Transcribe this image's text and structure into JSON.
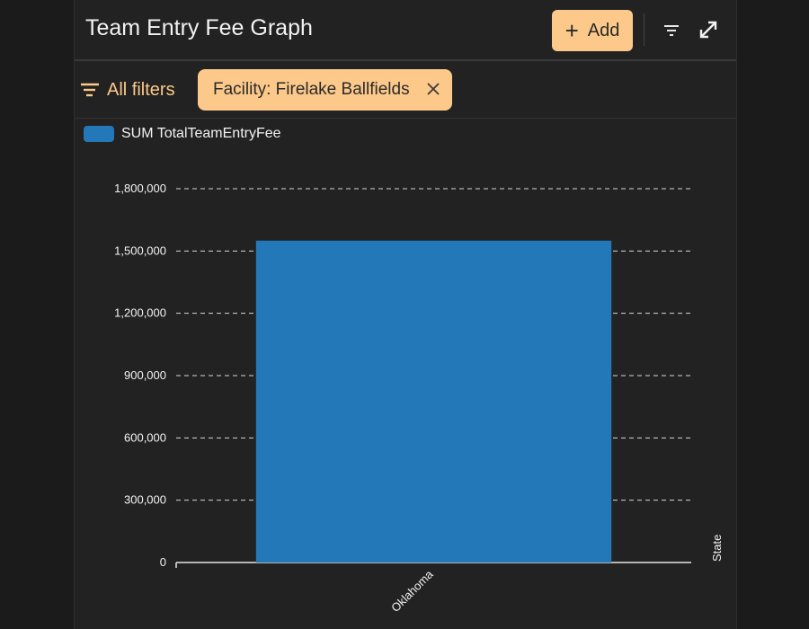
{
  "header": {
    "title": "Team Entry Fee Graph",
    "add_label": "Add",
    "icons": {
      "add": "plus-icon",
      "filter": "filter-icon",
      "expand": "expand-icon"
    }
  },
  "filters": {
    "all_filters_label": "All filters",
    "chip_label": "Facility: Firelake Ballfields"
  },
  "colors": {
    "accent": "#fcc98a",
    "bar": "#2378b7",
    "background": "#222222"
  },
  "chart_data": {
    "type": "bar",
    "categories": [
      "Oklahoma"
    ],
    "series": [
      {
        "name": "SUM TotalTeamEntryFee",
        "values": [
          1550000
        ]
      }
    ],
    "xlabel": "State",
    "ylabel": "",
    "ylim": [
      0,
      1800000
    ],
    "yticks": [
      "0",
      "300,000",
      "600,000",
      "900,000",
      "1,200,000",
      "1,500,000",
      "1,800,000"
    ],
    "grid": true,
    "legend": "top-left"
  }
}
